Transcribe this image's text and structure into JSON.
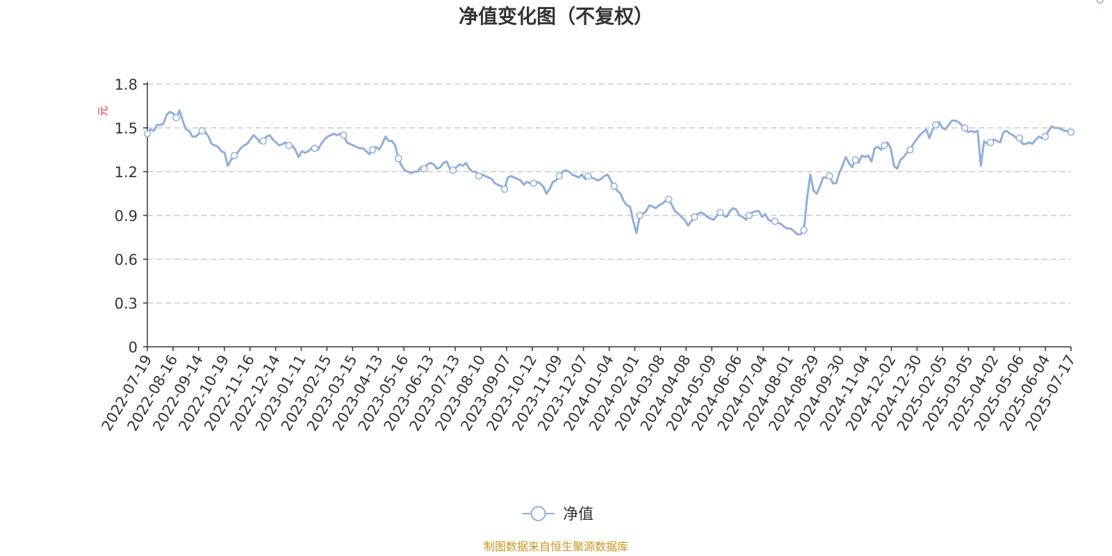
{
  "chart_data": {
    "type": "line",
    "title": "净值变化图（不复权）",
    "ylabel": "元",
    "ylim": [
      0,
      1.8
    ],
    "y_ticks": [
      "0",
      "0.3",
      "0.6",
      "0.9",
      "1.2",
      "1.5",
      "1.8"
    ],
    "y_tick_values": [
      0,
      0.3,
      0.6,
      0.9,
      1.2,
      1.5,
      1.8
    ],
    "x_tick_labels": [
      "2022-07-19",
      "2022-08-16",
      "2022-09-14",
      "2022-10-19",
      "2022-11-16",
      "2022-12-14",
      "2023-01-11",
      "2023-02-15",
      "2023-03-15",
      "2023-04-13",
      "2023-05-16",
      "2023-06-13",
      "2023-07-13",
      "2023-08-10",
      "2023-09-07",
      "2023-10-12",
      "2023-11-09",
      "2023-12-07",
      "2024-01-04",
      "2024-02-01",
      "2024-03-08",
      "2024-04-08",
      "2024-05-09",
      "2024-06-06",
      "2024-07-04",
      "2024-08-01",
      "2024-08-29",
      "2024-09-30",
      "2024-11-04",
      "2024-12-02",
      "2024-12-30",
      "2025-02-05",
      "2025-03-05",
      "2025-04-02",
      "2025-05-06",
      "2025-06-04",
      "2025-07-17"
    ],
    "grid": "horizontal dashed",
    "legend_position": "bottom-center",
    "series": [
      {
        "name": "净值",
        "color": "#8eaedc",
        "values": [
          1.46,
          1.49,
          1.48,
          1.52,
          1.52,
          1.53,
          1.59,
          1.61,
          1.6,
          1.57,
          1.62,
          1.55,
          1.49,
          1.48,
          1.44,
          1.44,
          1.46,
          1.48,
          1.47,
          1.44,
          1.39,
          1.38,
          1.37,
          1.34,
          1.33,
          1.24,
          1.28,
          1.31,
          1.33,
          1.36,
          1.38,
          1.39,
          1.42,
          1.45,
          1.43,
          1.4,
          1.41,
          1.44,
          1.45,
          1.42,
          1.4,
          1.38,
          1.39,
          1.4,
          1.38,
          1.38,
          1.35,
          1.3,
          1.34,
          1.33,
          1.34,
          1.36,
          1.36,
          1.35,
          1.39,
          1.42,
          1.44,
          1.45,
          1.46,
          1.45,
          1.46,
          1.45,
          1.4,
          1.39,
          1.38,
          1.37,
          1.36,
          1.36,
          1.34,
          1.32,
          1.35,
          1.37,
          1.35,
          1.39,
          1.44,
          1.41,
          1.41,
          1.38,
          1.29,
          1.24,
          1.21,
          1.2,
          1.19,
          1.2,
          1.2,
          1.23,
          1.22,
          1.25,
          1.26,
          1.25,
          1.22,
          1.23,
          1.26,
          1.27,
          1.22,
          1.21,
          1.23,
          1.25,
          1.24,
          1.26,
          1.22,
          1.2,
          1.2,
          1.17,
          1.18,
          1.17,
          1.16,
          1.15,
          1.12,
          1.11,
          1.1,
          1.08,
          1.16,
          1.17,
          1.16,
          1.15,
          1.14,
          1.11,
          1.13,
          1.12,
          1.12,
          1.13,
          1.12,
          1.1,
          1.05,
          1.08,
          1.13,
          1.14,
          1.17,
          1.2,
          1.21,
          1.2,
          1.18,
          1.17,
          1.16,
          1.18,
          1.15,
          1.17,
          1.16,
          1.15,
          1.14,
          1.15,
          1.17,
          1.18,
          1.14,
          1.1,
          1.07,
          1.05,
          1.0,
          0.97,
          0.96,
          0.86,
          0.78,
          0.9,
          0.91,
          0.93,
          0.97,
          0.96,
          0.95,
          0.97,
          0.98,
          1.0,
          1.01,
          0.97,
          0.93,
          0.91,
          0.89,
          0.87,
          0.83,
          0.86,
          0.89,
          0.91,
          0.92,
          0.91,
          0.89,
          0.88,
          0.87,
          0.9,
          0.92,
          0.9,
          0.89,
          0.93,
          0.95,
          0.94,
          0.9,
          0.89,
          0.87,
          0.9,
          0.92,
          0.93,
          0.93,
          0.89,
          0.91,
          0.87,
          0.86,
          0.86,
          0.85,
          0.84,
          0.82,
          0.81,
          0.81,
          0.79,
          0.77,
          0.77,
          0.8,
          1.02,
          1.18,
          1.07,
          1.05,
          1.1,
          1.16,
          1.16,
          1.17,
          1.12,
          1.12,
          1.19,
          1.24,
          1.3,
          1.26,
          1.23,
          1.28,
          1.26,
          1.31,
          1.3,
          1.31,
          1.27,
          1.36,
          1.37,
          1.35,
          1.38,
          1.4,
          1.36,
          1.24,
          1.22,
          1.28,
          1.3,
          1.33,
          1.35,
          1.39,
          1.42,
          1.45,
          1.47,
          1.49,
          1.43,
          1.49,
          1.52,
          1.54,
          1.5,
          1.49,
          1.52,
          1.55,
          1.55,
          1.54,
          1.52,
          1.5,
          1.47,
          1.48,
          1.47,
          1.48,
          1.24,
          1.41,
          1.39,
          1.4,
          1.42,
          1.41,
          1.4,
          1.47,
          1.48,
          1.46,
          1.45,
          1.43,
          1.43,
          1.39,
          1.39,
          1.4,
          1.39,
          1.42,
          1.44,
          1.43,
          1.44,
          1.48,
          1.51,
          1.5,
          1.5,
          1.49,
          1.48,
          1.48,
          1.47
        ],
        "marker_indices": [
          0,
          9,
          17,
          27,
          36,
          44,
          52,
          61,
          70,
          78,
          86,
          95,
          103,
          111,
          120,
          128,
          137,
          145,
          153,
          162,
          170,
          178,
          187,
          195,
          204,
          212,
          220,
          229,
          237,
          245,
          254,
          262,
          271,
          279,
          287,
          296,
          304,
          307
        ]
      }
    ]
  },
  "legend": {
    "label": "净值"
  },
  "source": {
    "text": "制图数据来自恒生聚源数据库",
    "color": "#c8961e"
  },
  "style": {
    "axis_color": "#333333",
    "grid_color": "#cccccc",
    "unit_color": "#e03030",
    "line_color": "#8eaedc"
  }
}
